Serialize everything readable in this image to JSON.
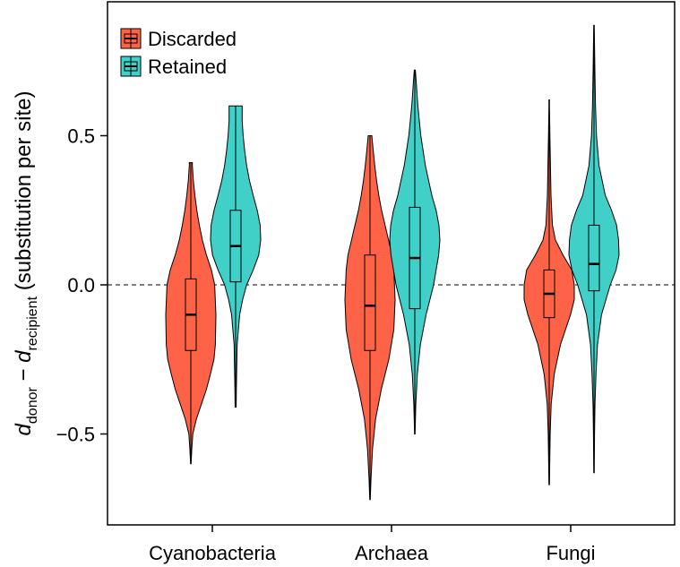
{
  "chart_data": {
    "type": "violin",
    "title": "",
    "xlabel": "",
    "ylabel": {
      "d": "d",
      "sub_donor": "donor",
      "minus": " − ",
      "sub_recipient": "recipient",
      "rest": " (substitution per site)"
    },
    "ylim": [
      -0.8,
      0.95
    ],
    "yticks": [
      -0.5,
      0.0,
      0.5
    ],
    "ytick_labels": [
      "−0.5",
      "0.0",
      "0.5"
    ],
    "reference_line": 0.0,
    "categories": [
      "Cyanobacteria",
      "Archaea",
      "Fungi"
    ],
    "legend_position": "top-left",
    "series": [
      {
        "name": "Discarded",
        "color": "#FF6347",
        "violins": [
          {
            "category": "Cyanobacteria",
            "min": -0.6,
            "q1": -0.22,
            "median": -0.1,
            "q3": 0.02,
            "max": 0.41,
            "density": [
              [
                -0.6,
                0.01
              ],
              [
                -0.55,
                0.04
              ],
              [
                -0.5,
                0.08
              ],
              [
                -0.45,
                0.22
              ],
              [
                -0.4,
                0.42
              ],
              [
                -0.35,
                0.62
              ],
              [
                -0.3,
                0.78
              ],
              [
                -0.25,
                0.92
              ],
              [
                -0.2,
                0.98
              ],
              [
                -0.1,
                1.0
              ],
              [
                0.0,
                0.95
              ],
              [
                0.05,
                0.82
              ],
              [
                0.1,
                0.62
              ],
              [
                0.15,
                0.46
              ],
              [
                0.2,
                0.34
              ],
              [
                0.25,
                0.24
              ],
              [
                0.3,
                0.16
              ],
              [
                0.35,
                0.1
              ],
              [
                0.4,
                0.06
              ],
              [
                0.41,
                0.06
              ]
            ]
          },
          {
            "category": "Archaea",
            "min": -0.72,
            "q1": -0.22,
            "median": -0.07,
            "q3": 0.1,
            "max": 0.5,
            "density": [
              [
                -0.72,
                0.01
              ],
              [
                -0.65,
                0.04
              ],
              [
                -0.55,
                0.1
              ],
              [
                -0.45,
                0.22
              ],
              [
                -0.35,
                0.45
              ],
              [
                -0.25,
                0.75
              ],
              [
                -0.15,
                0.95
              ],
              [
                -0.05,
                1.0
              ],
              [
                0.05,
                0.95
              ],
              [
                0.1,
                0.88
              ],
              [
                0.15,
                0.74
              ],
              [
                0.2,
                0.6
              ],
              [
                0.25,
                0.46
              ],
              [
                0.3,
                0.35
              ],
              [
                0.35,
                0.26
              ],
              [
                0.4,
                0.19
              ],
              [
                0.45,
                0.13
              ],
              [
                0.5,
                0.07
              ]
            ]
          },
          {
            "category": "Fungi",
            "min": -0.67,
            "q1": -0.11,
            "median": -0.03,
            "q3": 0.05,
            "max": 0.62,
            "density": [
              [
                -0.67,
                0.01
              ],
              [
                -0.6,
                0.02
              ],
              [
                -0.5,
                0.04
              ],
              [
                -0.4,
                0.08
              ],
              [
                -0.3,
                0.2
              ],
              [
                -0.2,
                0.45
              ],
              [
                -0.1,
                0.85
              ],
              [
                -0.05,
                1.0
              ],
              [
                0.0,
                1.0
              ],
              [
                0.05,
                0.9
              ],
              [
                0.1,
                0.55
              ],
              [
                0.15,
                0.25
              ],
              [
                0.2,
                0.13
              ],
              [
                0.3,
                0.07
              ],
              [
                0.4,
                0.05
              ],
              [
                0.5,
                0.03
              ],
              [
                0.6,
                0.01
              ],
              [
                0.62,
                0.01
              ]
            ]
          }
        ]
      },
      {
        "name": "Retained",
        "color": "#40D0C8",
        "violins": [
          {
            "category": "Cyanobacteria",
            "min": -0.41,
            "q1": 0.01,
            "median": 0.13,
            "q3": 0.25,
            "max": 0.6,
            "density": [
              [
                -0.41,
                0.02
              ],
              [
                -0.35,
                0.03
              ],
              [
                -0.3,
                0.04
              ],
              [
                -0.2,
                0.06
              ],
              [
                -0.1,
                0.16
              ],
              [
                -0.05,
                0.28
              ],
              [
                0.0,
                0.44
              ],
              [
                0.05,
                0.7
              ],
              [
                0.1,
                0.92
              ],
              [
                0.15,
                1.0
              ],
              [
                0.2,
                0.98
              ],
              [
                0.25,
                0.86
              ],
              [
                0.3,
                0.7
              ],
              [
                0.35,
                0.55
              ],
              [
                0.4,
                0.44
              ],
              [
                0.45,
                0.36
              ],
              [
                0.5,
                0.3
              ],
              [
                0.55,
                0.26
              ],
              [
                0.6,
                0.26
              ]
            ]
          },
          {
            "category": "Archaea",
            "min": -0.5,
            "q1": -0.08,
            "median": 0.09,
            "q3": 0.26,
            "max": 0.72,
            "density": [
              [
                -0.5,
                0.01
              ],
              [
                -0.4,
                0.04
              ],
              [
                -0.3,
                0.1
              ],
              [
                -0.2,
                0.22
              ],
              [
                -0.1,
                0.45
              ],
              [
                0.0,
                0.75
              ],
              [
                0.1,
                0.95
              ],
              [
                0.15,
                1.0
              ],
              [
                0.2,
                0.96
              ],
              [
                0.25,
                0.85
              ],
              [
                0.3,
                0.68
              ],
              [
                0.4,
                0.42
              ],
              [
                0.5,
                0.24
              ],
              [
                0.6,
                0.12
              ],
              [
                0.7,
                0.04
              ],
              [
                0.72,
                0.02
              ]
            ]
          },
          {
            "category": "Fungi",
            "min": -0.63,
            "q1": -0.02,
            "median": 0.07,
            "q3": 0.2,
            "max": 0.87,
            "density": [
              [
                -0.63,
                0.01
              ],
              [
                -0.5,
                0.02
              ],
              [
                -0.4,
                0.04
              ],
              [
                -0.3,
                0.08
              ],
              [
                -0.2,
                0.14
              ],
              [
                -0.1,
                0.3
              ],
              [
                0.0,
                0.65
              ],
              [
                0.05,
                0.88
              ],
              [
                0.1,
                1.0
              ],
              [
                0.15,
                0.98
              ],
              [
                0.2,
                0.9
              ],
              [
                0.25,
                0.7
              ],
              [
                0.3,
                0.45
              ],
              [
                0.4,
                0.2
              ],
              [
                0.5,
                0.1
              ],
              [
                0.6,
                0.06
              ],
              [
                0.7,
                0.04
              ],
              [
                0.8,
                0.02
              ],
              [
                0.87,
                0.01
              ]
            ]
          }
        ]
      }
    ]
  }
}
